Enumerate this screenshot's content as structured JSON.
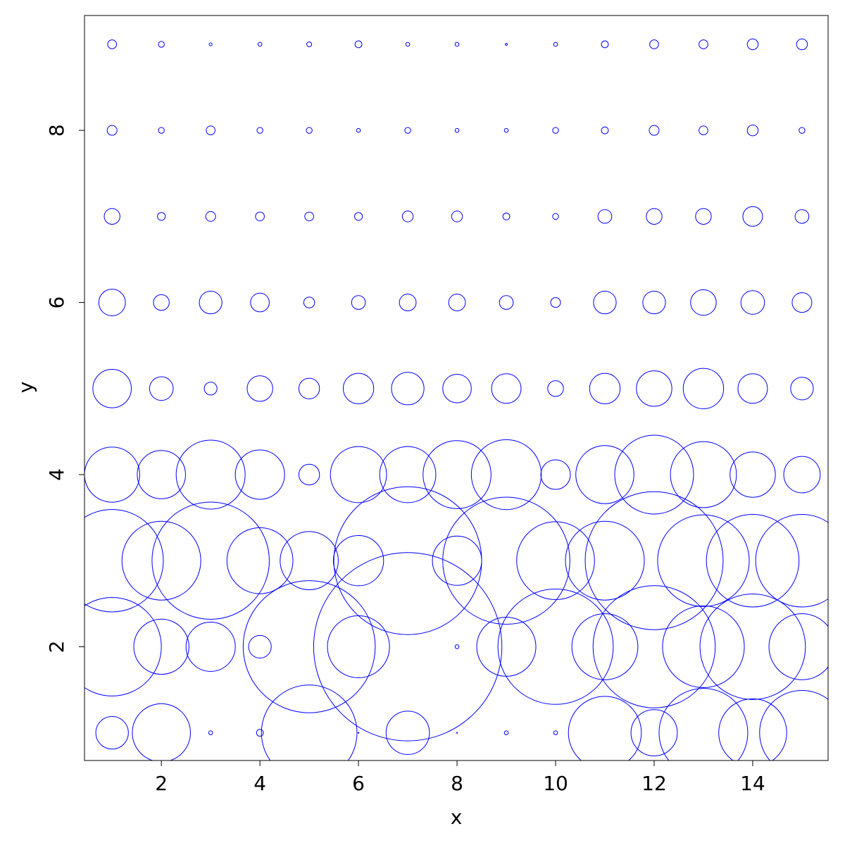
{
  "chart_data": {
    "type": "bubble",
    "x_label": "x",
    "y_label": "y",
    "xlim": [
      0.44,
      15.53
    ],
    "ylim": [
      0.678,
      9.335
    ],
    "xticks": [
      2,
      4,
      6,
      8,
      10,
      12,
      14
    ],
    "yticks": [
      2,
      4,
      6,
      8
    ],
    "color": "#0000ff",
    "x": [
      1,
      2,
      3,
      4,
      5,
      6,
      7,
      8,
      9,
      10,
      11,
      12,
      13,
      14,
      15,
      1,
      2,
      3,
      4,
      5,
      6,
      7,
      8,
      9,
      10,
      11,
      12,
      13,
      14,
      15,
      1,
      2,
      3,
      4,
      5,
      6,
      7,
      8,
      9,
      10,
      11,
      12,
      13,
      14,
      15,
      1,
      2,
      3,
      4,
      5,
      6,
      7,
      8,
      9,
      10,
      11,
      12,
      13,
      14,
      15,
      1,
      2,
      3,
      4,
      5,
      6,
      7,
      8,
      9,
      10,
      11,
      12,
      13,
      14,
      15,
      1,
      2,
      3,
      4,
      5,
      6,
      7,
      8,
      9,
      10,
      11,
      12,
      13,
      14,
      15,
      1,
      2,
      3,
      4,
      5,
      6,
      7,
      8,
      9,
      10,
      11,
      12,
      13,
      14,
      15,
      1,
      2,
      3,
      4,
      5,
      6,
      7,
      8,
      9,
      10,
      11,
      12,
      13,
      14,
      15,
      1,
      2,
      3,
      4,
      5,
      6,
      7,
      8,
      9,
      10,
      11,
      12,
      13,
      14,
      15
    ],
    "y": [
      1,
      1,
      1,
      1,
      1,
      1,
      1,
      1,
      1,
      1,
      1,
      1,
      1,
      1,
      1,
      2,
      2,
      2,
      2,
      2,
      2,
      2,
      2,
      2,
      2,
      2,
      2,
      2,
      2,
      2,
      3,
      3,
      3,
      3,
      3,
      3,
      3,
      3,
      3,
      3,
      3,
      3,
      3,
      3,
      3,
      4,
      4,
      4,
      4,
      4,
      4,
      4,
      4,
      4,
      4,
      4,
      4,
      4,
      4,
      4,
      5,
      5,
      5,
      5,
      5,
      5,
      5,
      5,
      5,
      5,
      5,
      5,
      5,
      5,
      5,
      6,
      6,
      6,
      6,
      6,
      6,
      6,
      6,
      6,
      6,
      6,
      6,
      6,
      6,
      6,
      7,
      7,
      7,
      7,
      7,
      7,
      7,
      7,
      7,
      7,
      7,
      7,
      7,
      7,
      7,
      8,
      8,
      8,
      8,
      8,
      8,
      8,
      8,
      8,
      8,
      8,
      8,
      8,
      8,
      8,
      9,
      9,
      9,
      9,
      9,
      9,
      9,
      9,
      9,
      9,
      9,
      9,
      9,
      9,
      9
    ],
    "sizes": [
      0.33,
      0.59,
      0.04,
      0.07,
      0.97,
      0.01,
      0.44,
      0.01,
      0.04,
      0.04,
      0.74,
      0.47,
      0.9,
      0.69,
      0.86,
      1,
      0.56,
      0.5,
      0.23,
      1.34,
      0.63,
      1.91,
      0.04,
      0.6,
      1.17,
      0.67,
      1.24,
      0.83,
      1.07,
      0.67,
      1.04,
      0.8,
      1.19,
      0.67,
      0.59,
      0.51,
      1.5,
      0.5,
      1.29,
      0.79,
      0.8,
      1.4,
      0.93,
      0.94,
      0.94,
      0.56,
      0.49,
      0.7,
      0.5,
      0.21,
      0.57,
      0.57,
      0.69,
      0.71,
      0.3,
      0.59,
      0.8,
      0.67,
      0.46,
      0.37,
      0.39,
      0.24,
      0.13,
      0.26,
      0.21,
      0.31,
      0.33,
      0.29,
      0.3,
      0.16,
      0.31,
      0.36,
      0.41,
      0.3,
      0.23,
      0.27,
      0.16,
      0.23,
      0.19,
      0.11,
      0.14,
      0.17,
      0.17,
      0.14,
      0.1,
      0.23,
      0.23,
      0.26,
      0.24,
      0.2,
      0.16,
      0.08,
      0.1,
      0.09,
      0.09,
      0.08,
      0.11,
      0.11,
      0.07,
      0.06,
      0.14,
      0.16,
      0.16,
      0.2,
      0.14,
      0.1,
      0.06,
      0.09,
      0.06,
      0.06,
      0.04,
      0.06,
      0.04,
      0.04,
      0.06,
      0.07,
      0.1,
      0.09,
      0.11,
      0.06,
      0.09,
      0.06,
      0.03,
      0.04,
      0.05,
      0.07,
      0.04,
      0.04,
      0.02,
      0.04,
      0.07,
      0.09,
      0.09,
      0.11,
      0.11
    ]
  }
}
